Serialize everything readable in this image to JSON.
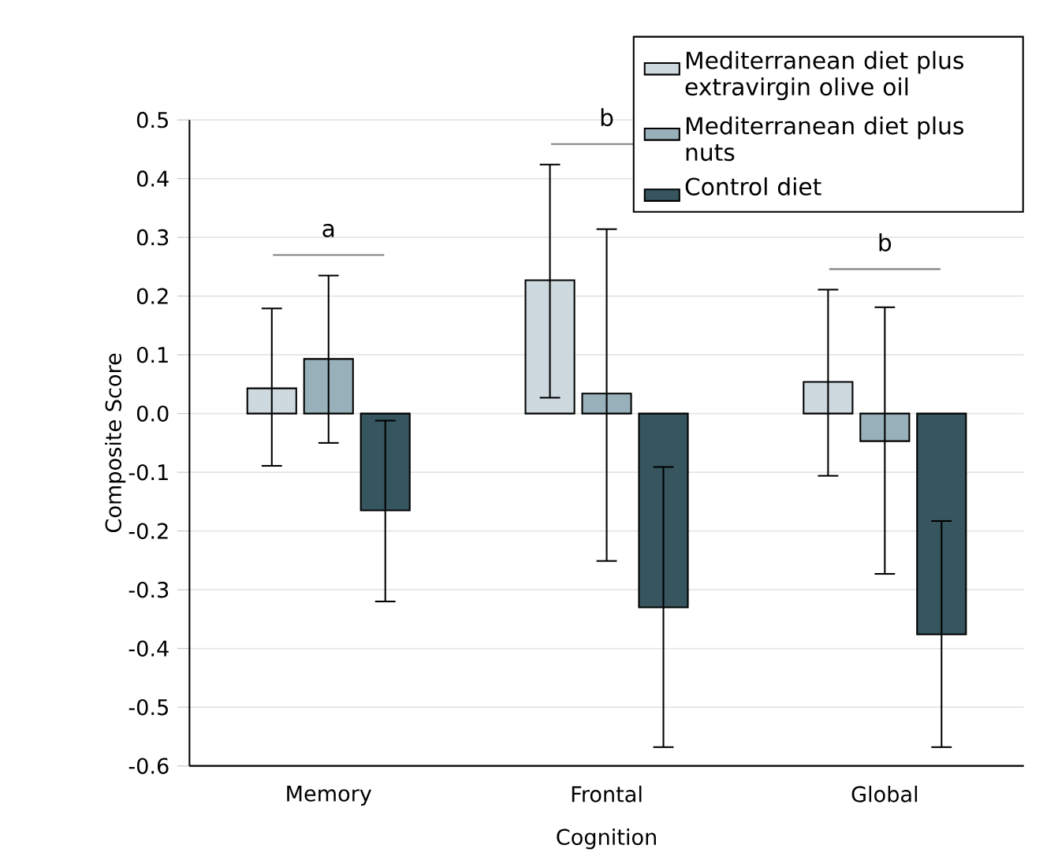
{
  "chart_data": {
    "type": "bar",
    "xlabel": "Cognition",
    "ylabel": "Composite Score",
    "categories": [
      "Memory",
      "Frontal",
      "Global"
    ],
    "series": [
      {
        "name": "Mediterranean diet plus extravirgin olive oil",
        "color": "#cdd9df",
        "values": [
          0.043,
          0.227,
          0.054
        ],
        "errors": [
          [
            -0.089,
            0.179
          ],
          [
            0.027,
            0.424
          ],
          [
            -0.106,
            0.211
          ]
        ]
      },
      {
        "name": "Mediterranean diet plus nuts",
        "color": "#98b0ba",
        "values": [
          0.093,
          0.034,
          -0.047
        ],
        "errors": [
          [
            -0.05,
            0.235
          ],
          [
            -0.251,
            0.314
          ],
          [
            -0.273,
            0.181
          ]
        ]
      },
      {
        "name": "Control diet",
        "color": "#36555f",
        "values": [
          -0.165,
          -0.33,
          -0.376
        ],
        "errors": [
          [
            -0.32,
            -0.012
          ],
          [
            -0.568,
            -0.091
          ],
          [
            -0.568,
            -0.183
          ]
        ]
      }
    ],
    "ylim": [
      -0.6,
      0.5
    ],
    "yticks": [
      -0.6,
      -0.5,
      -0.4,
      -0.3,
      -0.2,
      -0.1,
      {
        "value": 0,
        "label": "0.0"
      },
      0.1,
      0.2,
      0.3,
      0.4,
      0.5
    ],
    "grid": "y",
    "legend": "top right",
    "annotations": [
      "a",
      "b",
      "b"
    ]
  }
}
